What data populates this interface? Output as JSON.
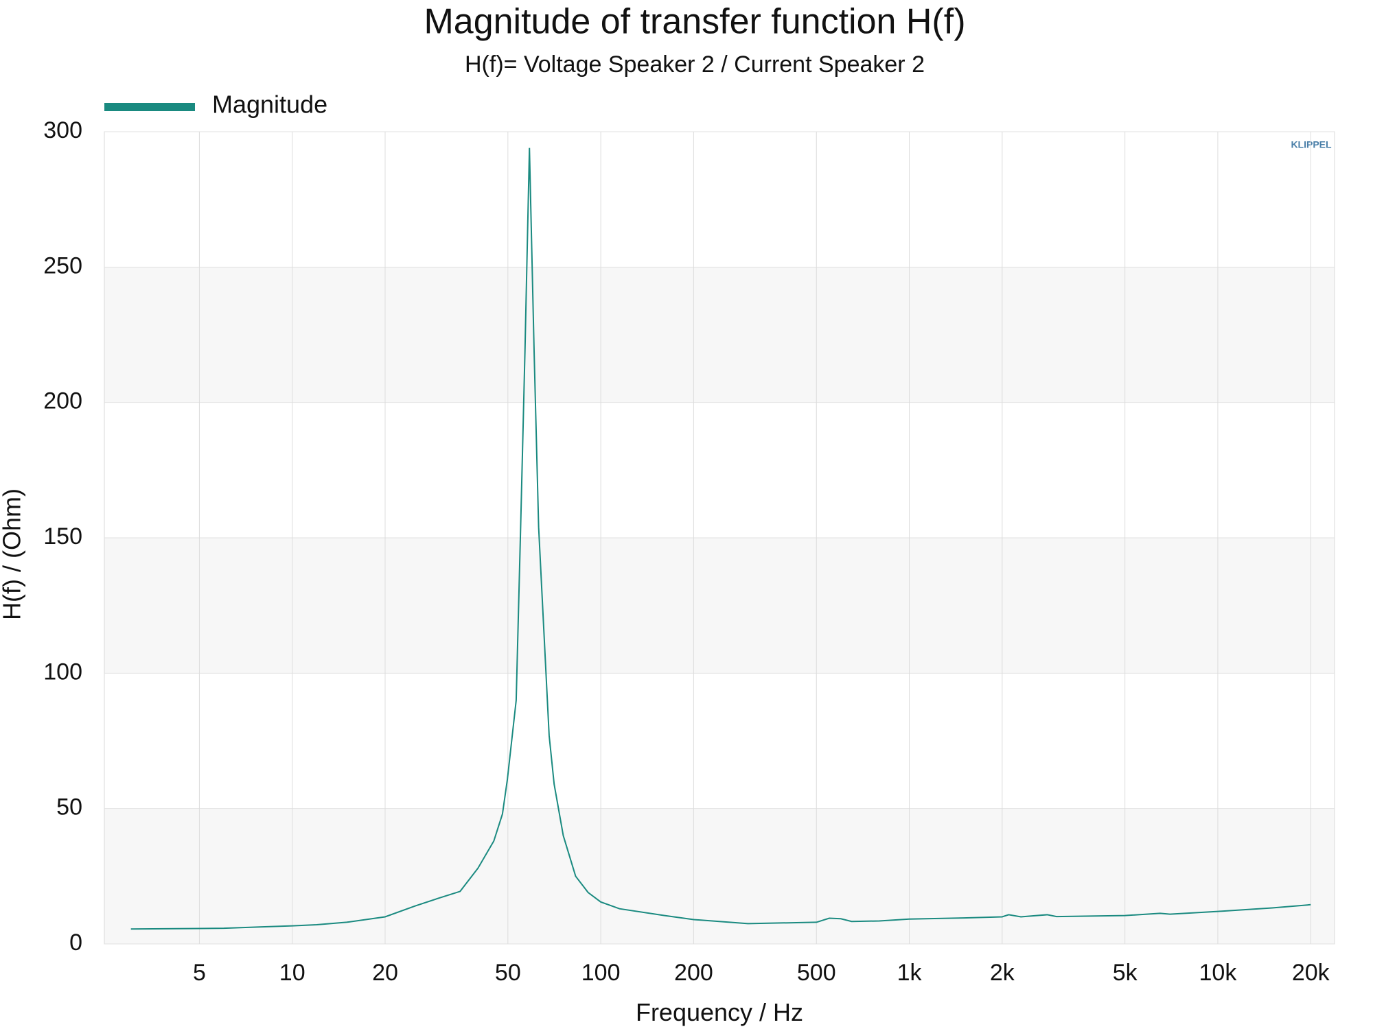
{
  "chart_data": {
    "type": "line",
    "title": "Magnitude of transfer function H(f)",
    "subtitle": "H(f)= Voltage Speaker 2 / Current Speaker 2",
    "x_label": "Frequency / Hz",
    "y_label": "H(f) / (Ohm)",
    "logo": "KLIPPEL",
    "x_scale": "log",
    "legend": "top-left",
    "grid": true,
    "xlim": [
      2.46,
      23900
    ],
    "ylim": [
      0,
      300
    ],
    "xticks": [
      5,
      10,
      20,
      50,
      100,
      200,
      500,
      {
        "value": 1000,
        "label": "1k"
      },
      {
        "value": 2000,
        "label": "2k"
      },
      {
        "value": 5000,
        "label": "5k"
      },
      {
        "value": 10000,
        "label": "10k"
      },
      {
        "value": 20000,
        "label": "20k"
      }
    ],
    "yticks": [
      0,
      50,
      100,
      150,
      200,
      250,
      300
    ],
    "x": [
      3,
      5,
      6,
      8,
      10,
      12,
      15,
      20,
      25,
      30,
      35,
      40,
      45,
      48,
      49.8,
      53.2,
      55,
      56.8,
      58.7,
      60.8,
      62.9,
      68,
      70.6,
      75.6,
      82.9,
      91,
      100,
      115,
      161,
      200,
      300,
      500,
      550,
      600,
      650,
      800,
      1000,
      1500,
      2000,
      2100,
      2300,
      2800,
      3000,
      5000,
      6500,
      7000,
      10000,
      15000,
      20000
    ],
    "series": [
      {
        "name": "Magnitude",
        "color": "#1a8a80",
        "values": [
          5.5,
          5.7,
          5.8,
          6.3,
          6.7,
          7.1,
          8.0,
          10,
          14,
          17,
          19.4,
          28,
          38,
          48,
          60.8,
          90,
          154,
          219,
          294,
          219,
          154,
          77,
          59,
          40,
          25,
          19,
          15.5,
          13,
          10.5,
          9,
          7.5,
          8,
          9.5,
          9.3,
          8.3,
          8.5,
          9.2,
          9.6,
          10,
          10.8,
          10,
          10.8,
          10.1,
          10.5,
          11.3,
          11,
          12,
          13.3,
          14.5
        ]
      }
    ]
  }
}
